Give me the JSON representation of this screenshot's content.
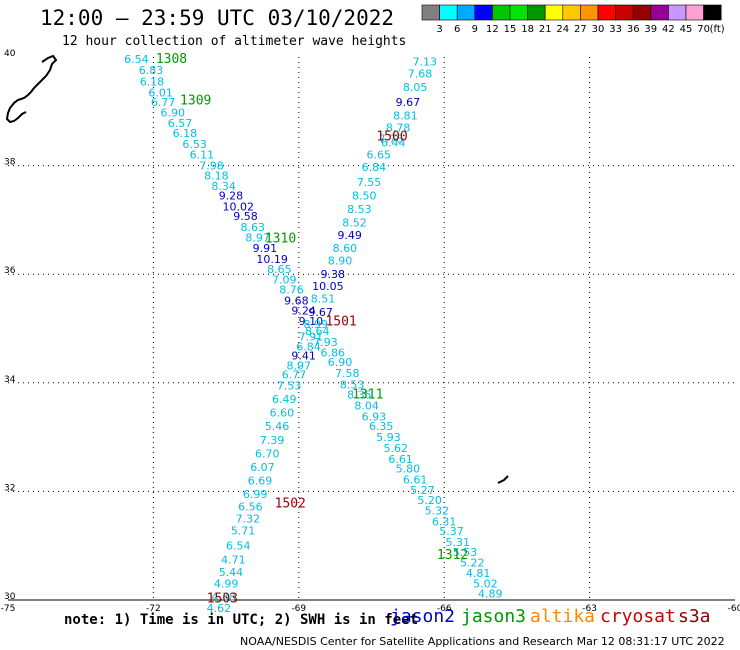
{
  "title": "12:00 – 23:59 UTC 03/10/2022",
  "subtitle": "12 hour collection of altimeter wave heights",
  "note": "note: 1) Time is in UTC; 2) SWH is in feet",
  "credit": "NOAA/NESDIS Center for Satellite Applications and Research    Mar 12 08:31:17 UTC 2022",
  "satellites": [
    {
      "name": "jason2",
      "color": "#0000cc"
    },
    {
      "name": "jason3",
      "color": "#009900"
    },
    {
      "name": "altika",
      "color": "#ff8800"
    },
    {
      "name": "cryosat",
      "color": "#cc0000"
    },
    {
      "name": "s3a",
      "color": "#880000"
    }
  ],
  "colorbar": {
    "unit": "(ft)",
    "colors": [
      "#808080",
      "#00ffff",
      "#00aaff",
      "#0000ff",
      "#00c800",
      "#00e600",
      "#009600",
      "#ffff00",
      "#ffc800",
      "#ff9600",
      "#ff0000",
      "#c80000",
      "#960000",
      "#960096",
      "#c896ff",
      "#ffa0d2",
      "#000000"
    ],
    "labels": [
      "3",
      "6",
      "9",
      "12",
      "15",
      "18",
      "21",
      "24",
      "27",
      "30",
      "33",
      "36",
      "39",
      "42",
      "45",
      "70"
    ]
  },
  "axes": {
    "lon_ticks": [
      "-75",
      "-72",
      "-69",
      "-66",
      "-63",
      "-60"
    ],
    "lat_ticks": [
      "40",
      "38",
      "36",
      "34",
      "32",
      "30"
    ],
    "lon_values": [
      -75,
      -72,
      -69,
      -66,
      -63,
      -60
    ],
    "lat_values": [
      40,
      38,
      36,
      34,
      32,
      30
    ],
    "lon_range": [
      -75,
      -60
    ],
    "lat_range": [
      30,
      40
    ]
  },
  "track_labels": [
    {
      "text": "1308",
      "lon": -71.95,
      "lat": 39.98,
      "color": "#009900"
    },
    {
      "text": "1309",
      "lon": -71.45,
      "lat": 39.22,
      "color": "#009900"
    },
    {
      "text": "1310",
      "lon": -69.7,
      "lat": 36.68,
      "color": "#009900"
    },
    {
      "text": "1311",
      "lon": -67.9,
      "lat": 33.8,
      "color": "#009900"
    },
    {
      "text": "1312",
      "lon": -66.15,
      "lat": 30.85,
      "color": "#009900"
    },
    {
      "text": "1500",
      "lon": -67.4,
      "lat": 38.55,
      "color": "#990000"
    },
    {
      "text": "1501",
      "lon": -68.45,
      "lat": 35.15,
      "color": "#990000"
    },
    {
      "text": "1502",
      "lon": -69.5,
      "lat": 31.8,
      "color": "#990000"
    },
    {
      "text": "1503",
      "lon": -70.9,
      "lat": 30.05,
      "color": "#990000"
    }
  ],
  "tracks": [
    {
      "name": "track-1",
      "points": [
        {
          "lon": -72.35,
          "lat": 39.96,
          "swh": "6.54"
        },
        {
          "lon": -72.05,
          "lat": 39.76,
          "swh": "6.83"
        },
        {
          "lon": -72.03,
          "lat": 39.55,
          "swh": "6.18"
        },
        {
          "lon": -71.85,
          "lat": 39.35,
          "swh": "6.01"
        },
        {
          "lon": -71.8,
          "lat": 39.17,
          "swh": "6.77"
        },
        {
          "lon": -71.6,
          "lat": 38.98,
          "swh": "6.90"
        },
        {
          "lon": -71.45,
          "lat": 38.78,
          "swh": "6.57"
        },
        {
          "lon": -71.35,
          "lat": 38.6,
          "swh": "6.18"
        },
        {
          "lon": -71.15,
          "lat": 38.4,
          "swh": "6.53"
        },
        {
          "lon": -71.0,
          "lat": 38.2,
          "swh": "6.11"
        },
        {
          "lon": -70.8,
          "lat": 38.0,
          "swh": "7.98"
        },
        {
          "lon": -70.7,
          "lat": 37.82,
          "swh": "8.18"
        },
        {
          "lon": -70.55,
          "lat": 37.62,
          "swh": "8.34"
        },
        {
          "lon": -70.4,
          "lat": 37.45,
          "swh": "9.28"
        },
        {
          "lon": -70.25,
          "lat": 37.25,
          "swh": "10.02"
        },
        {
          "lon": -70.1,
          "lat": 37.07,
          "swh": "9.58"
        },
        {
          "lon": -69.95,
          "lat": 36.87,
          "swh": "8.63"
        },
        {
          "lon": -69.85,
          "lat": 36.68,
          "swh": "8.97"
        },
        {
          "lon": -69.7,
          "lat": 36.48,
          "swh": "9.91"
        },
        {
          "lon": -69.55,
          "lat": 36.28,
          "swh": "10.19"
        },
        {
          "lon": -69.4,
          "lat": 36.1,
          "swh": "8.65"
        },
        {
          "lon": -69.3,
          "lat": 35.9,
          "swh": "7.09"
        },
        {
          "lon": -69.15,
          "lat": 35.72,
          "swh": "8.76"
        },
        {
          "lon": -69.05,
          "lat": 35.52,
          "swh": "9.68"
        },
        {
          "lon": -68.9,
          "lat": 35.33,
          "swh": "9.24"
        },
        {
          "lon": -68.75,
          "lat": 35.14,
          "swh": "9.10"
        },
        {
          "lon": -68.62,
          "lat": 34.95,
          "swh": "8.64"
        },
        {
          "lon": -68.45,
          "lat": 34.75,
          "swh": "7.93"
        },
        {
          "lon": -68.3,
          "lat": 34.56,
          "swh": "6.86"
        },
        {
          "lon": -68.15,
          "lat": 34.38,
          "swh": "6.90"
        },
        {
          "lon": -68.0,
          "lat": 34.18,
          "swh": "7.58"
        },
        {
          "lon": -67.9,
          "lat": 33.97,
          "swh": "8.53"
        },
        {
          "lon": -67.75,
          "lat": 33.78,
          "swh": "8.35"
        },
        {
          "lon": -67.6,
          "lat": 33.58,
          "swh": "8.04"
        },
        {
          "lon": -67.45,
          "lat": 33.38,
          "swh": "6.93"
        },
        {
          "lon": -67.3,
          "lat": 33.2,
          "swh": "6.35"
        },
        {
          "lon": -67.15,
          "lat": 33.0,
          "swh": "5.93"
        },
        {
          "lon": -67.0,
          "lat": 32.8,
          "swh": "5.62"
        },
        {
          "lon": -66.9,
          "lat": 32.6,
          "swh": "6.61"
        },
        {
          "lon": -66.75,
          "lat": 32.42,
          "swh": "5.80"
        },
        {
          "lon": -66.6,
          "lat": 32.22,
          "swh": "6.61"
        },
        {
          "lon": -66.45,
          "lat": 32.03,
          "swh": "5.27"
        },
        {
          "lon": -66.3,
          "lat": 31.84,
          "swh": "5.20"
        },
        {
          "lon": -66.15,
          "lat": 31.65,
          "swh": "5.32"
        },
        {
          "lon": -66.0,
          "lat": 31.45,
          "swh": "6.31"
        },
        {
          "lon": -65.85,
          "lat": 31.27,
          "swh": "5.37"
        },
        {
          "lon": -65.72,
          "lat": 31.07,
          "swh": "5.31"
        },
        {
          "lon": -65.57,
          "lat": 30.88,
          "swh": "5.53"
        },
        {
          "lon": -65.42,
          "lat": 30.69,
          "swh": "5.22"
        },
        {
          "lon": -65.3,
          "lat": 30.5,
          "swh": "4.81"
        },
        {
          "lon": -65.15,
          "lat": 30.3,
          "swh": "5.02"
        },
        {
          "lon": -65.05,
          "lat": 30.12,
          "swh": "4.89"
        }
      ]
    },
    {
      "name": "track-2",
      "points": [
        {
          "lon": -66.4,
          "lat": 39.92,
          "swh": "7.13"
        },
        {
          "lon": -66.5,
          "lat": 39.7,
          "swh": "7.68"
        },
        {
          "lon": -66.6,
          "lat": 39.45,
          "swh": "8.05"
        },
        {
          "lon": -66.75,
          "lat": 39.17,
          "swh": "9.67"
        },
        {
          "lon": -66.8,
          "lat": 38.92,
          "swh": "8.81"
        },
        {
          "lon": -66.95,
          "lat": 38.7,
          "swh": "8.78"
        },
        {
          "lon": -67.1,
          "lat": 38.5,
          "swh": "7.78"
        },
        {
          "lon": -67.05,
          "lat": 38.43,
          "swh": "6.44"
        },
        {
          "lon": -67.35,
          "lat": 38.2,
          "swh": "6.65"
        },
        {
          "lon": -67.45,
          "lat": 37.97,
          "swh": "6.84"
        },
        {
          "lon": -67.55,
          "lat": 37.7,
          "swh": "7.55"
        },
        {
          "lon": -67.65,
          "lat": 37.45,
          "swh": "8.50"
        },
        {
          "lon": -67.75,
          "lat": 37.2,
          "swh": "8.53"
        },
        {
          "lon": -67.85,
          "lat": 36.95,
          "swh": "8.52"
        },
        {
          "lon": -67.95,
          "lat": 36.72,
          "swh": "9.49"
        },
        {
          "lon": -68.05,
          "lat": 36.48,
          "swh": "8.60"
        },
        {
          "lon": -68.15,
          "lat": 36.25,
          "swh": "8.90"
        },
        {
          "lon": -68.3,
          "lat": 36.0,
          "swh": "9.38"
        },
        {
          "lon": -68.4,
          "lat": 35.78,
          "swh": "10.05"
        },
        {
          "lon": -68.5,
          "lat": 35.55,
          "swh": "8.51"
        },
        {
          "lon": -68.55,
          "lat": 35.3,
          "swh": "9.67"
        },
        {
          "lon": -68.65,
          "lat": 35.08,
          "swh": "8.99"
        },
        {
          "lon": -68.75,
          "lat": 34.85,
          "swh": "7.91"
        },
        {
          "lon": -68.8,
          "lat": 34.67,
          "swh": "6.84"
        },
        {
          "lon": -68.9,
          "lat": 34.5,
          "swh": "9.41"
        },
        {
          "lon": -69.0,
          "lat": 34.32,
          "swh": "8.97"
        },
        {
          "lon": -69.1,
          "lat": 34.15,
          "swh": "6.77"
        },
        {
          "lon": -69.2,
          "lat": 33.95,
          "swh": "7.53"
        },
        {
          "lon": -69.3,
          "lat": 33.7,
          "swh": "6.49"
        },
        {
          "lon": -69.35,
          "lat": 33.45,
          "swh": "6.60"
        },
        {
          "lon": -69.45,
          "lat": 33.2,
          "swh": "5.46"
        },
        {
          "lon": -69.55,
          "lat": 32.95,
          "swh": "7.39"
        },
        {
          "lon": -69.65,
          "lat": 32.7,
          "swh": "6.70"
        },
        {
          "lon": -69.75,
          "lat": 32.45,
          "swh": "6.07"
        },
        {
          "lon": -69.8,
          "lat": 32.2,
          "swh": "6.69"
        },
        {
          "lon": -69.9,
          "lat": 31.95,
          "swh": "6.99"
        },
        {
          "lon": -70.0,
          "lat": 31.72,
          "swh": "6.56"
        },
        {
          "lon": -70.05,
          "lat": 31.5,
          "swh": "7.32"
        },
        {
          "lon": -70.15,
          "lat": 31.28,
          "swh": "5.71"
        },
        {
          "lon": -70.25,
          "lat": 31.0,
          "swh": "6.54"
        },
        {
          "lon": -70.35,
          "lat": 30.75,
          "swh": "4.71"
        },
        {
          "lon": -70.4,
          "lat": 30.52,
          "swh": "5.44"
        },
        {
          "lon": -70.5,
          "lat": 30.3,
          "swh": "4.99"
        },
        {
          "lon": -70.55,
          "lat": 30.06,
          "swh": "4.38"
        },
        {
          "lon": -70.65,
          "lat": 29.85,
          "swh": "4.62"
        }
      ]
    }
  ]
}
